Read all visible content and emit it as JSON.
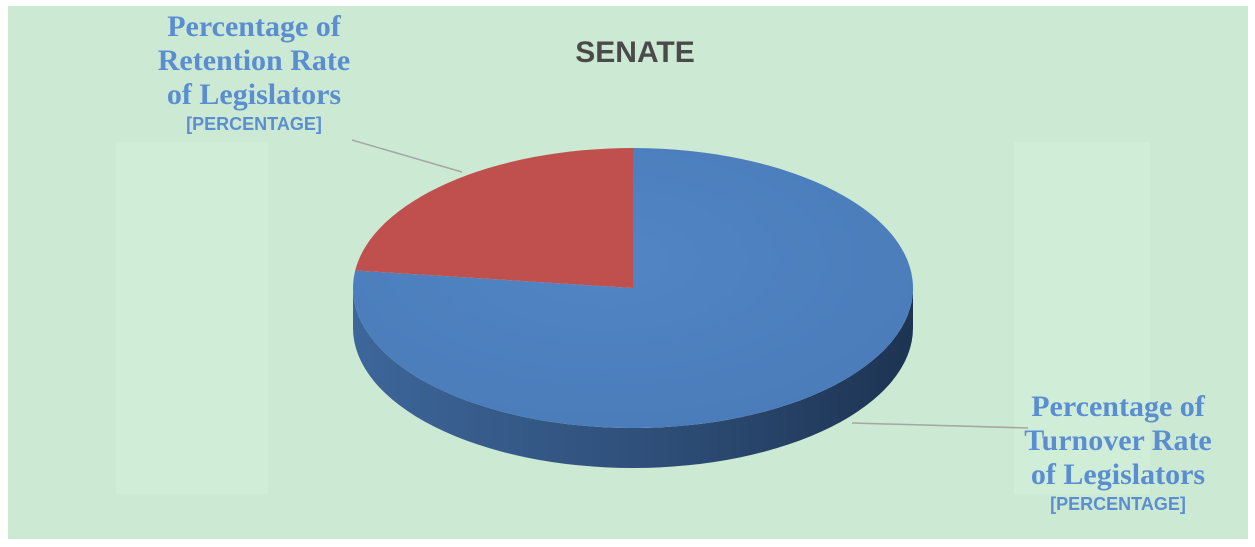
{
  "chart_data": {
    "type": "pie",
    "title": "SENATE",
    "slices": [
      {
        "name": "Percentage of Retention Rate of Legislators",
        "value": 23,
        "label_lines": [
          "Percentage of",
          "Retention Rate",
          "of Legislators"
        ],
        "value_label": "[PERCENTAGE]",
        "color": "#c0504d",
        "side_color": "#8c3836"
      },
      {
        "name": "Percentage of Turnover Rate of Legislators",
        "value": 77,
        "label_lines": [
          "Percentage of",
          "Turnover Rate",
          "of Legislators"
        ],
        "value_label": "[PERCENTAGE]",
        "color": "#4f81bd",
        "side_color": "#2f4f77"
      }
    ],
    "legend": "none",
    "style": "3d"
  },
  "colors": {
    "background": "#cce9d3",
    "title": "#4a4a4a",
    "label": "#5b8ed0",
    "leader_line": "#a6a6a6"
  }
}
